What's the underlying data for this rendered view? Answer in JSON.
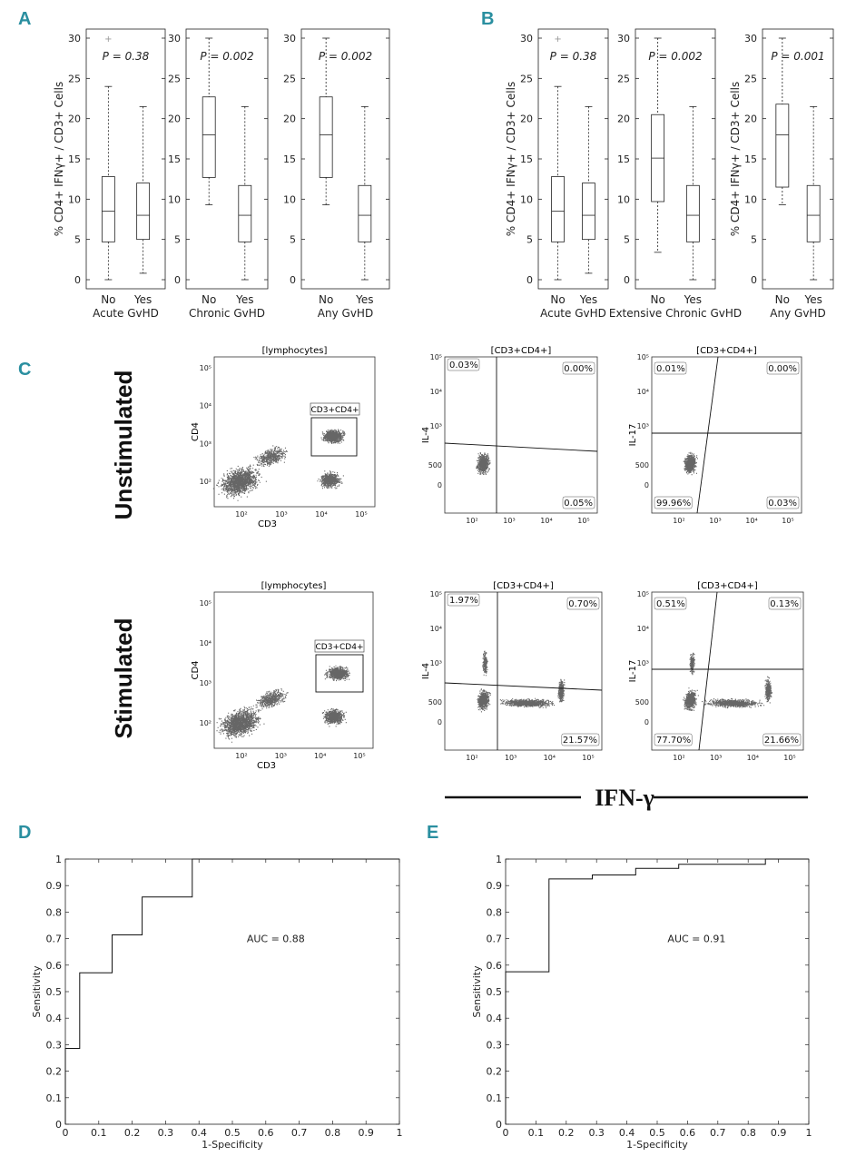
{
  "panel_labels": {
    "A": "A",
    "B": "B",
    "C": "C",
    "D": "D",
    "E": "E"
  },
  "chart_data": [
    {
      "id": "A",
      "type": "box",
      "ylabel": "% CD4+ IFNγ+ / CD3+ Cells",
      "ylim": [
        0,
        30
      ],
      "yticks": [
        0,
        5,
        10,
        15,
        20,
        25,
        30
      ],
      "groups": [
        {
          "xlabel": "Acute GvHD",
          "p_value": "P = 0.38",
          "categories": [
            "No",
            "Yes"
          ],
          "boxes": [
            {
              "min": 0,
              "q1": 4.7,
              "median": 8.5,
              "q3": 12.8,
              "max": 24,
              "outliers": [
                30
              ]
            },
            {
              "min": 0.8,
              "q1": 5,
              "median": 8,
              "q3": 12,
              "max": 21.5,
              "outliers": []
            }
          ]
        },
        {
          "xlabel": "Chronic GvHD",
          "p_value": "P = 0.002",
          "categories": [
            "No",
            "Yes"
          ],
          "boxes": [
            {
              "min": 9.3,
              "q1": 12.7,
              "median": 18,
              "q3": 22.7,
              "max": 30,
              "outliers": []
            },
            {
              "min": 0,
              "q1": 4.7,
              "median": 8,
              "q3": 11.7,
              "max": 21.5,
              "outliers": []
            }
          ]
        },
        {
          "xlabel": "Any GvHD",
          "p_value": "P = 0.002",
          "categories": [
            "No",
            "Yes"
          ],
          "boxes": [
            {
              "min": 9.3,
              "q1": 12.7,
              "median": 18,
              "q3": 22.7,
              "max": 30,
              "outliers": []
            },
            {
              "min": 0,
              "q1": 4.7,
              "median": 8,
              "q3": 11.7,
              "max": 21.5,
              "outliers": []
            }
          ]
        }
      ]
    },
    {
      "id": "B",
      "type": "box",
      "ylabel": "% CD4+ IFNγ+ / CD3+ Cells",
      "ylim": [
        0,
        30
      ],
      "yticks": [
        0,
        5,
        10,
        15,
        20,
        25,
        30
      ],
      "groups": [
        {
          "xlabel": "Acute GvHD",
          "p_value": "P = 0.38",
          "categories": [
            "No",
            "Yes"
          ],
          "boxes": [
            {
              "min": 0,
              "q1": 4.7,
              "median": 8.5,
              "q3": 12.8,
              "max": 24,
              "outliers": [
                30
              ]
            },
            {
              "min": 0.8,
              "q1": 5,
              "median": 8,
              "q3": 12,
              "max": 21.5,
              "outliers": []
            }
          ]
        },
        {
          "xlabel": "Extensive Chronic GvHD",
          "p_value": "P = 0.002",
          "categories": [
            "No",
            "Yes"
          ],
          "boxes": [
            {
              "min": 3.4,
              "q1": 9.7,
              "median": 15.1,
              "q3": 20.5,
              "max": 30,
              "outliers": []
            },
            {
              "min": 0,
              "q1": 4.7,
              "median": 8,
              "q3": 11.7,
              "max": 21.5,
              "outliers": []
            }
          ]
        },
        {
          "xlabel": "Any GvHD",
          "p_value": "P = 0.001",
          "categories": [
            "No",
            "Yes"
          ],
          "boxes": [
            {
              "min": 9.3,
              "q1": 11.5,
              "median": 18,
              "q3": 21.8,
              "max": 30,
              "outliers": []
            },
            {
              "min": 0,
              "q1": 4.7,
              "median": 8,
              "q3": 11.7,
              "max": 21.5,
              "outliers": []
            }
          ]
        }
      ]
    },
    {
      "id": "C",
      "type": "scatter",
      "row_labels": [
        "Unstimulated",
        "Stimulated"
      ],
      "x_axis_title": "IFN-γ",
      "plots": [
        {
          "title": "[lymphocytes]",
          "xlabel": "CD3",
          "ylabel": "CD4",
          "gate": "CD3+CD4+"
        },
        {
          "title": "[CD3+CD4+]",
          "ylabel": "IL-4",
          "quadrants": [
            "0.03%",
            "0.00%",
            "0.05%"
          ]
        },
        {
          "title": "[CD3+CD4+]",
          "ylabel": "IL-17",
          "quadrants": [
            "0.01%",
            "0.00%",
            "99.96%",
            "0.03%"
          ]
        },
        {
          "title": "[lymphocytes]",
          "xlabel": "CD3",
          "ylabel": "CD4",
          "gate": "CD3+CD4+"
        },
        {
          "title": "[CD3+CD4+]",
          "ylabel": "IL-4",
          "quadrants": [
            "1.97%",
            "0.70%",
            "21.57%"
          ]
        },
        {
          "title": "[CD3+CD4+]",
          "ylabel": "IL-17",
          "quadrants": [
            "0.51%",
            "0.13%",
            "77.70%",
            "21.66%"
          ]
        }
      ],
      "flow_ticks": {
        "sup": [
          "10²",
          "10³",
          "10⁴",
          "10⁵"
        ],
        "linear": [
          "0",
          "500",
          "-500"
        ]
      }
    },
    {
      "id": "D",
      "type": "line",
      "xlabel": "1-Specificity",
      "ylabel": "Sensitivity",
      "xlim": [
        0,
        1
      ],
      "ylim": [
        0,
        1
      ],
      "ticks": [
        "0",
        "0.1",
        "0.2",
        "0.3",
        "0.4",
        "0.5",
        "0.6",
        "0.7",
        "0.8",
        "0.9",
        "1"
      ],
      "annotation": "AUC = 0.88",
      "points": [
        [
          0,
          0
        ],
        [
          0,
          0.286
        ],
        [
          0.043,
          0.286
        ],
        [
          0.043,
          0.571
        ],
        [
          0.14,
          0.571
        ],
        [
          0.14,
          0.714
        ],
        [
          0.23,
          0.714
        ],
        [
          0.23,
          0.857
        ],
        [
          0.38,
          0.857
        ],
        [
          0.38,
          1
        ],
        [
          1,
          1
        ]
      ]
    },
    {
      "id": "E",
      "type": "line",
      "xlabel": "1-Specificity",
      "ylabel": "Sensitivity",
      "xlim": [
        0,
        1
      ],
      "ylim": [
        0,
        1
      ],
      "ticks": [
        "0",
        "0.1",
        "0.2",
        "0.3",
        "0.4",
        "0.5",
        "0.6",
        "0.7",
        "0.8",
        "0.9",
        "1"
      ],
      "annotation": "AUC = 0.91",
      "points": [
        [
          0,
          0
        ],
        [
          0,
          0.575
        ],
        [
          0.143,
          0.575
        ],
        [
          0.143,
          0.925
        ],
        [
          0.286,
          0.925
        ],
        [
          0.286,
          0.94
        ],
        [
          0.429,
          0.94
        ],
        [
          0.429,
          0.965
        ],
        [
          0.571,
          0.965
        ],
        [
          0.571,
          0.98
        ],
        [
          0.857,
          0.98
        ],
        [
          0.857,
          1
        ],
        [
          1,
          1
        ]
      ]
    }
  ]
}
